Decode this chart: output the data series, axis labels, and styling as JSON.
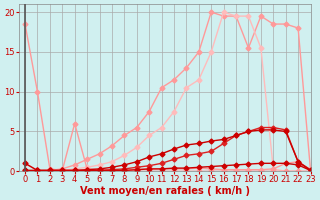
{
  "background_color": "#d0f0f0",
  "grid_color": "#aaaaaa",
  "xlabel": "Vent moyen/en rafales ( km/h )",
  "xlabel_color": "#cc0000",
  "ylabel_color": "#cc0000",
  "xlim": [
    -0.5,
    23
  ],
  "ylim": [
    0,
    21
  ],
  "xticks": [
    0,
    1,
    2,
    3,
    4,
    5,
    6,
    7,
    8,
    9,
    10,
    11,
    12,
    13,
    14,
    15,
    16,
    17,
    18,
    19,
    20,
    21,
    22,
    23
  ],
  "yticks": [
    0,
    5,
    10,
    15,
    20
  ],
  "line_falling": {
    "x": [
      0,
      1,
      2,
      3,
      4,
      5,
      6,
      7,
      8,
      9,
      10,
      11,
      12,
      13,
      14,
      15,
      16,
      17,
      18,
      19,
      20,
      21,
      22,
      23
    ],
    "y": [
      18.5,
      10.0,
      0.3,
      0.1,
      0.0,
      0.0,
      0.0,
      0.0,
      0.0,
      0.0,
      0.0,
      0.0,
      0.0,
      0.0,
      0.0,
      0.0,
      0.0,
      0.0,
      0.0,
      0.0,
      0.0,
      0.0,
      0.0,
      0.0
    ],
    "color": "#ff9999",
    "marker": "D",
    "markersize": 2.5,
    "linewidth": 1.0
  },
  "line_spike": {
    "x": [
      0,
      1,
      2,
      3,
      4,
      5,
      6,
      7,
      8,
      9,
      10,
      11,
      12,
      13,
      14,
      15,
      16,
      17,
      18,
      19,
      20,
      21,
      22,
      23
    ],
    "y": [
      1.0,
      0.1,
      0.1,
      0.1,
      6.0,
      0.3,
      0.2,
      0.2,
      0.2,
      0.2,
      0.3,
      0.3,
      0.3,
      0.3,
      0.4,
      0.3,
      0.2,
      0.2,
      0.2,
      0.2,
      0.3,
      1.0,
      1.2,
      0.1
    ],
    "color": "#ff9999",
    "marker": "D",
    "markersize": 2.5,
    "linewidth": 1.0
  },
  "line_gradual_high": {
    "x": [
      0,
      1,
      2,
      3,
      4,
      5,
      6,
      7,
      8,
      9,
      10,
      11,
      12,
      13,
      14,
      15,
      16,
      17,
      18,
      19,
      20,
      21,
      22,
      23
    ],
    "y": [
      0.0,
      0.0,
      0.1,
      0.3,
      0.8,
      1.5,
      2.2,
      3.2,
      4.5,
      5.5,
      7.5,
      10.5,
      11.5,
      13.0,
      15.0,
      20.0,
      19.5,
      19.5,
      15.5,
      19.5,
      18.5,
      18.5,
      18.0,
      0.1
    ],
    "color": "#ff9999",
    "marker": "D",
    "markersize": 2.5,
    "linewidth": 1.0
  },
  "line_gradual_mid": {
    "x": [
      0,
      1,
      2,
      3,
      4,
      5,
      6,
      7,
      8,
      9,
      10,
      11,
      12,
      13,
      14,
      15,
      16,
      17,
      18,
      19,
      20,
      21,
      22,
      23
    ],
    "y": [
      0.0,
      0.0,
      0.0,
      0.1,
      0.3,
      0.5,
      0.8,
      1.2,
      2.0,
      3.0,
      4.5,
      5.5,
      7.5,
      10.5,
      11.5,
      15.0,
      20.0,
      19.5,
      19.5,
      15.5,
      0.3,
      0.0,
      0.0,
      0.0
    ],
    "color": "#ffbbbb",
    "marker": "D",
    "markersize": 2.5,
    "linewidth": 1.0
  },
  "line_dark1": {
    "x": [
      0,
      1,
      2,
      3,
      4,
      5,
      6,
      7,
      8,
      9,
      10,
      11,
      12,
      13,
      14,
      15,
      16,
      17,
      18,
      19,
      20,
      21,
      22,
      23
    ],
    "y": [
      1.0,
      0.1,
      0.1,
      0.1,
      0.1,
      0.2,
      0.3,
      0.5,
      0.8,
      1.2,
      1.8,
      2.2,
      2.8,
      3.3,
      3.5,
      3.8,
      4.0,
      4.5,
      5.0,
      5.2,
      5.2,
      5.0,
      1.2,
      0.1
    ],
    "color": "#cc0000",
    "marker": "D",
    "markersize": 2.5,
    "linewidth": 1.0
  },
  "line_dark2": {
    "x": [
      0,
      1,
      2,
      3,
      4,
      5,
      6,
      7,
      8,
      9,
      10,
      11,
      12,
      13,
      14,
      15,
      16,
      17,
      18,
      19,
      20,
      21,
      22,
      23
    ],
    "y": [
      0.1,
      0.1,
      0.1,
      0.1,
      0.1,
      0.1,
      0.1,
      0.2,
      0.3,
      0.5,
      0.7,
      1.0,
      1.5,
      2.0,
      2.2,
      2.5,
      3.5,
      4.5,
      5.0,
      5.5,
      5.5,
      5.2,
      1.2,
      0.2
    ],
    "color": "#dd2222",
    "marker": "D",
    "markersize": 2.5,
    "linewidth": 1.0
  },
  "line_flat": {
    "x": [
      0,
      1,
      2,
      3,
      4,
      5,
      6,
      7,
      8,
      9,
      10,
      11,
      12,
      13,
      14,
      15,
      16,
      17,
      18,
      19,
      20,
      21,
      22,
      23
    ],
    "y": [
      0.1,
      0.1,
      0.1,
      0.1,
      0.1,
      0.1,
      0.1,
      0.1,
      0.1,
      0.2,
      0.3,
      0.3,
      0.4,
      0.4,
      0.5,
      0.6,
      0.7,
      0.8,
      0.9,
      1.0,
      1.0,
      1.0,
      0.8,
      0.1
    ],
    "color": "#cc0000",
    "marker": "D",
    "markersize": 2.5,
    "linewidth": 1.0
  },
  "tick_fontsize": 6,
  "label_fontsize": 7
}
